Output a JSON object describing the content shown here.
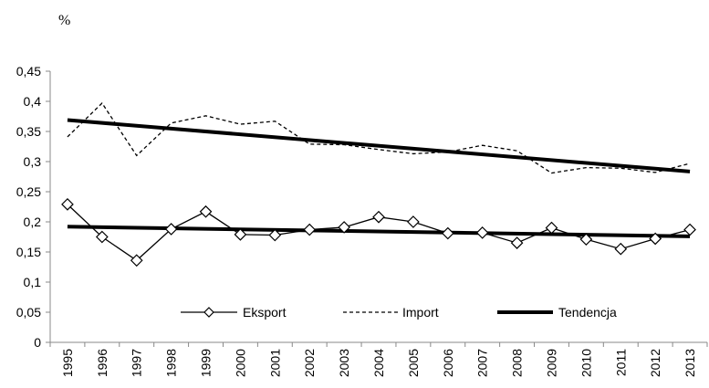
{
  "chart_data": {
    "type": "line",
    "ylabel": "%",
    "ylim": [
      0,
      0.45
    ],
    "yticks": [
      "0",
      "0,05",
      "0,1",
      "0,15",
      "0,2",
      "0,25",
      "0,3",
      "0,35",
      "0,4",
      "0,45"
    ],
    "categories": [
      "1995",
      "1996",
      "1997",
      "1998",
      "1999",
      "2000",
      "2001",
      "2002",
      "2003",
      "2004",
      "2005",
      "2006",
      "2007",
      "2008",
      "2009",
      "2010",
      "2011",
      "2012",
      "2013"
    ],
    "grid": false,
    "legend": "bottom-center",
    "series": [
      {
        "name": "Eksport",
        "style": "solid-diamond",
        "color": "#000000",
        "values": [
          0.229,
          0.175,
          0.136,
          0.188,
          0.217,
          0.179,
          0.178,
          0.187,
          0.191,
          0.208,
          0.2,
          0.181,
          0.182,
          0.165,
          0.19,
          0.171,
          0.155,
          0.172,
          0.187
        ]
      },
      {
        "name": "Import",
        "style": "dashed",
        "color": "#000000",
        "values": [
          0.341,
          0.397,
          0.31,
          0.364,
          0.376,
          0.362,
          0.367,
          0.329,
          0.328,
          0.32,
          0.313,
          0.316,
          0.327,
          0.318,
          0.281,
          0.29,
          0.289,
          0.282,
          0.297
        ]
      },
      {
        "name": "Tendencja",
        "style": "thick",
        "color": "#000000",
        "trends": [
          {
            "values": [
              0.369,
              0.2835
            ]
          },
          {
            "values": [
              0.192,
              0.176
            ]
          }
        ]
      }
    ]
  }
}
